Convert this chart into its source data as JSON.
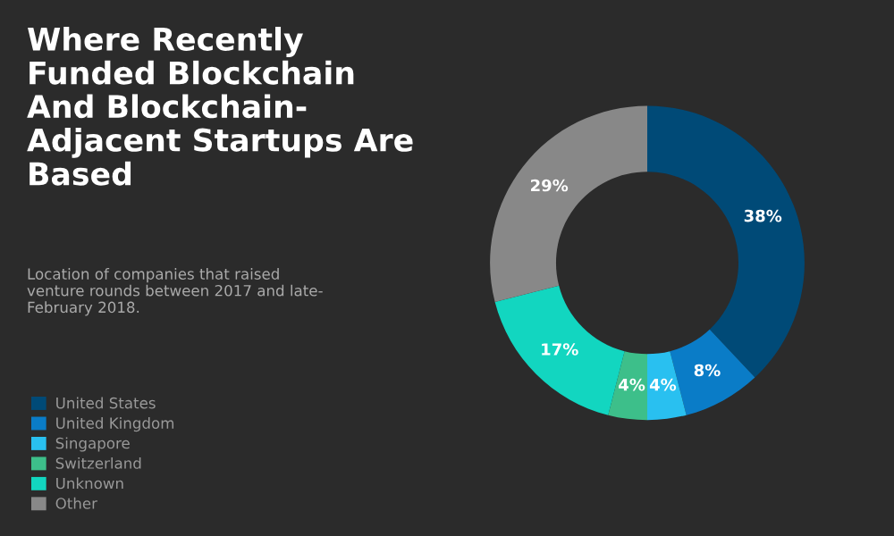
{
  "chart_data": {
    "type": "donut",
    "title": "Where Recently\nFunded Blockchain\nAnd Blockchain-\nAdjacent Startups Are\nBased",
    "subtitle": "Location of companies that raised\nventure rounds between 2017 and late-\nFebruary 2018.",
    "categories": [
      "United States",
      "United Kingdom",
      "Singapore",
      "Switzerland",
      "Unknown",
      "Other"
    ],
    "values": [
      38,
      8,
      4,
      4,
      17,
      29
    ],
    "colors": [
      "#004a77",
      "#0a7cc7",
      "#29c0f0",
      "#3dbf8a",
      "#12d6c0",
      "#888888"
    ],
    "value_labels": [
      "38%",
      "8%",
      "4%",
      "4%",
      "17%",
      "29%"
    ],
    "legend": "bottom left"
  }
}
